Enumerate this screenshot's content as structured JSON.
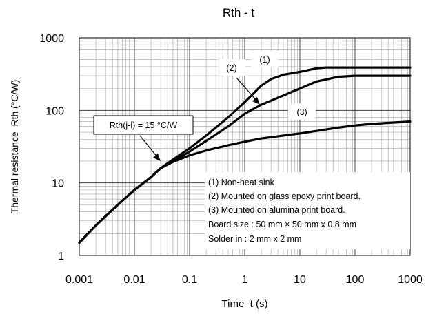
{
  "chart_data": {
    "type": "line",
    "title": "Rth - t",
    "xlabel": "Time  t (s)",
    "ylabel": "Thermal resistance  Rth (°C/W)",
    "x_scale": "log",
    "y_scale": "log",
    "xlim": [
      0.001,
      1000
    ],
    "ylim": [
      1,
      1000
    ],
    "grid": true,
    "x_tick_labels": [
      "0.001",
      "0.01",
      "0.1",
      "1",
      "10",
      "100",
      "1000"
    ],
    "y_tick_labels": [
      "1",
      "10",
      "100",
      "1000"
    ],
    "series": [
      {
        "label": "(1)",
        "x": [
          0.001,
          0.002,
          0.005,
          0.01,
          0.02,
          0.03,
          0.05,
          0.1,
          0.2,
          0.5,
          1,
          2,
          3,
          5,
          10,
          20,
          30,
          50,
          100,
          200,
          500,
          1000
        ],
        "y": [
          1.5,
          2.6,
          5.0,
          8.0,
          12.0,
          16.0,
          21.0,
          30.0,
          45.0,
          80.0,
          130.0,
          220.0,
          270.0,
          310.0,
          340.0,
          380.0,
          390.0,
          390.0,
          390.0,
          390.0,
          390.0,
          390.0
        ]
      },
      {
        "label": "(2)",
        "x": [
          0.001,
          0.002,
          0.005,
          0.01,
          0.02,
          0.03,
          0.05,
          0.1,
          0.2,
          0.5,
          1,
          2,
          5,
          10,
          20,
          50,
          100,
          200,
          500,
          1000
        ],
        "y": [
          1.5,
          2.6,
          5.0,
          8.0,
          12.0,
          16.0,
          20.0,
          27.0,
          38.0,
          60.0,
          90.0,
          120.0,
          160.0,
          200.0,
          250.0,
          290.0,
          300.0,
          300.0,
          300.0,
          300.0
        ]
      },
      {
        "label": "(3)",
        "x": [
          0.001,
          0.002,
          0.005,
          0.01,
          0.02,
          0.03,
          0.05,
          0.1,
          0.2,
          0.5,
          1,
          2,
          5,
          10,
          20,
          50,
          100,
          200,
          500,
          1000
        ],
        "y": [
          1.5,
          2.6,
          5.0,
          8.0,
          12.0,
          16.0,
          19.5,
          24.0,
          28.0,
          33.0,
          37.0,
          41.0,
          45.0,
          48.0,
          52.0,
          58.0,
          62.0,
          65.0,
          68.0,
          70.0
        ]
      }
    ],
    "annotations": {
      "rth_jl": "Rth(j-l) = 15 °C/W",
      "curve1": "(1)",
      "curve2": "(2)",
      "curve3": "(3)"
    },
    "legend": {
      "placement": "bottom-right",
      "lines": [
        "(1) Non-heat sink",
        "(2) Mounted on glass epoxy print board.",
        "(3) Mounted on alumina print board.",
        "Board size : 50 mm × 50 mm x 0.8 mm",
        "Solder in : 2 mm x 2 mm"
      ]
    }
  }
}
